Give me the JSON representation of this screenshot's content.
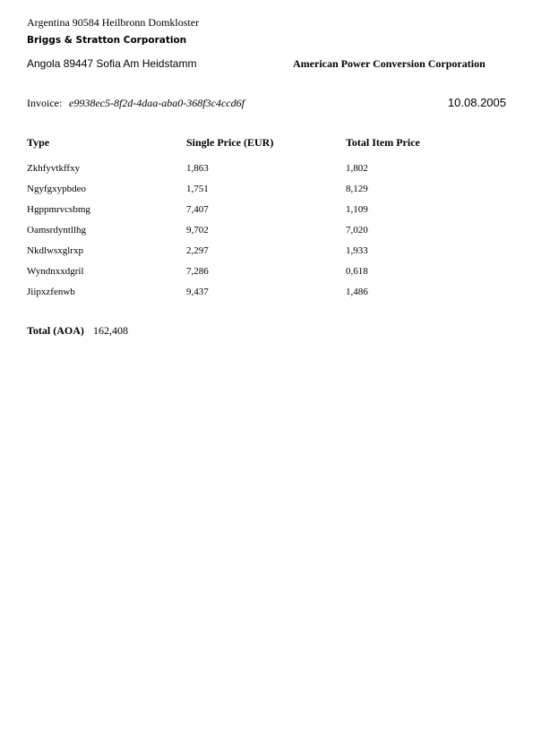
{
  "sender": {
    "address": "Argentina 90584 Heilbronn Domkloster",
    "name": "Briggs & Stratton Corporation"
  },
  "recipient": {
    "address": "Angola 89447 Sofia Am Heidstamm",
    "name": "American Power Conversion Corporation"
  },
  "invoice": {
    "label": "Invoice:",
    "id": "e9938ec5-8f2d-4daa-aba0-368f3c4ccd6f",
    "date": "10.08.2005"
  },
  "table": {
    "headers": [
      "Type",
      "Single Price (EUR)",
      "Total Item Price"
    ],
    "rows": [
      [
        "Zkhfyvtkffxy",
        "1,863",
        "1,802"
      ],
      [
        "Ngyfgxypbdeo",
        "1,751",
        "8,129"
      ],
      [
        "Hgppmrvcsbmg",
        "7,407",
        "1,109"
      ],
      [
        "Oamsrdyntllhg",
        "9,702",
        "7,020"
      ],
      [
        "Nkdlwsxglrxp",
        "2,297",
        "1,933"
      ],
      [
        "Wyndnxxdgril",
        "7,286",
        "0,618"
      ],
      [
        "Jiipxzfenwb",
        "9,437",
        "1,486"
      ]
    ]
  },
  "total": {
    "label": "Total (AOA)",
    "value": "162,408"
  }
}
